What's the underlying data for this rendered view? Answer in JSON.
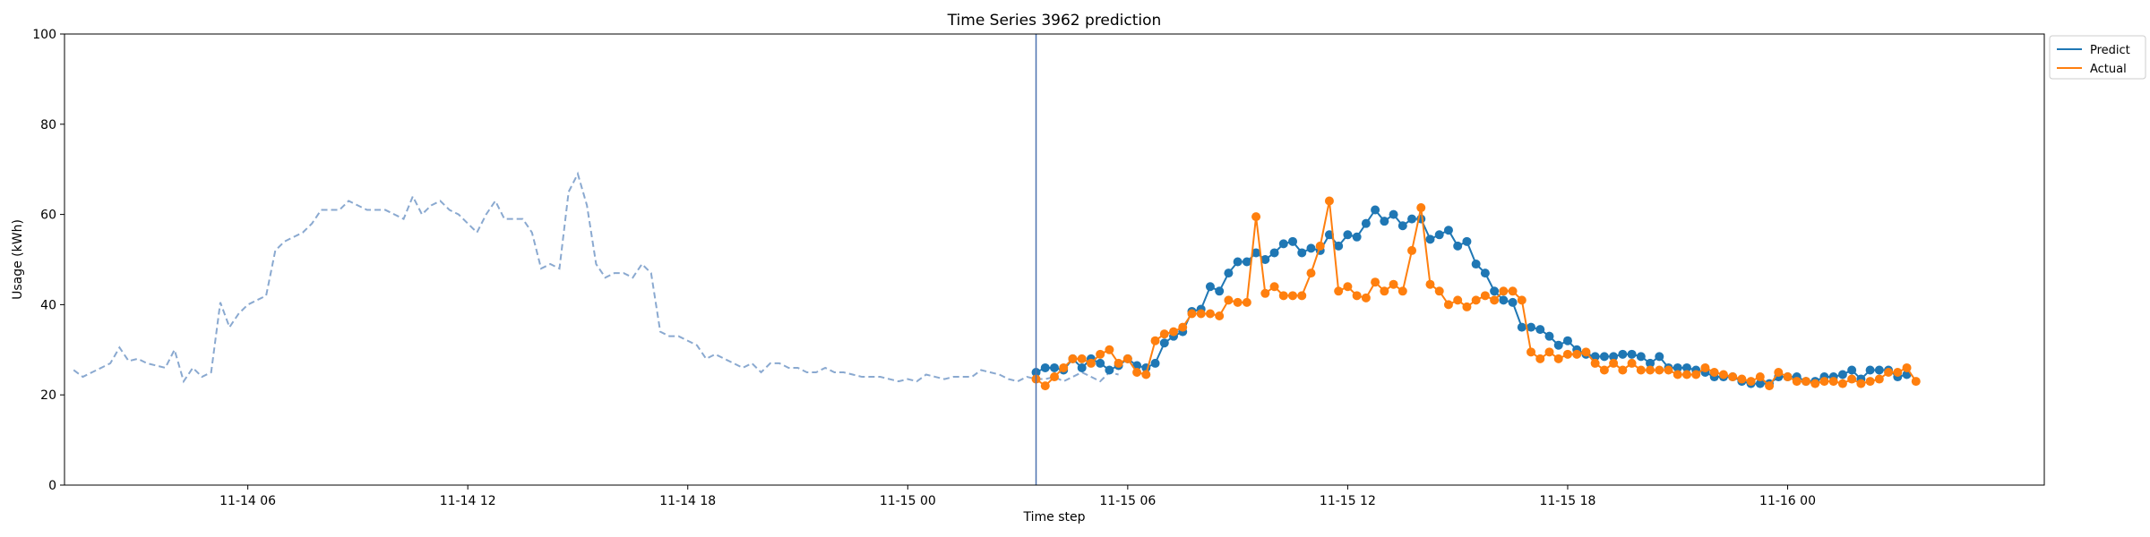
{
  "chart_data": {
    "type": "line",
    "title": "Time Series 3962 prediction",
    "xlabel": "Time step",
    "ylabel": "Usage (kWh)",
    "ylim": [
      0,
      100
    ],
    "yticks": [
      0,
      20,
      40,
      60,
      80,
      100
    ],
    "xlim": [
      "2025-11-14 01:00",
      "2025-11-16 07:00"
    ],
    "xticks": [
      {
        "time": "2025-11-14 06:00",
        "label": "11-14 06"
      },
      {
        "time": "2025-11-14 12:00",
        "label": "11-14 12"
      },
      {
        "time": "2025-11-14 18:00",
        "label": "11-14 18"
      },
      {
        "time": "2025-11-15 00:00",
        "label": "11-15 00"
      },
      {
        "time": "2025-11-15 06:00",
        "label": "11-15 06"
      },
      {
        "time": "2025-11-15 12:00",
        "label": "11-15 12"
      },
      {
        "time": "2025-11-15 18:00",
        "label": "11-15 18"
      },
      {
        "time": "2025-11-16 00:00",
        "label": "11-16 00"
      }
    ],
    "grid": false,
    "legend": "outside top-right",
    "vline": {
      "x": "2025-11-15 03:30",
      "color": "#4c72b0"
    },
    "series": [
      {
        "name": "",
        "style": "dashed",
        "color": "#8aa9d0",
        "start": "2025-11-14 01:15",
        "step_minutes": 15,
        "values": [
          25.5,
          24,
          25,
          26,
          27,
          30.5,
          27.5,
          28,
          27,
          26.5,
          26,
          30,
          23,
          26,
          24,
          25,
          40.5,
          35,
          38,
          40,
          41,
          42,
          52,
          54,
          55,
          56,
          58,
          61,
          61,
          61,
          63,
          62,
          61,
          61,
          61,
          60,
          59,
          64,
          60,
          62,
          63,
          61,
          60,
          58,
          56,
          60,
          63,
          59,
          59,
          59,
          56,
          48,
          49,
          48,
          65,
          69,
          62,
          49,
          46,
          47,
          47,
          46,
          49,
          47,
          34,
          33,
          33,
          32,
          31,
          28,
          29,
          28,
          27,
          26,
          27,
          25,
          27,
          27,
          26,
          26,
          25,
          25,
          26,
          25,
          25,
          24.5,
          24,
          24,
          24,
          23.5,
          23,
          23.5,
          23,
          24.5,
          24,
          23.5,
          24,
          24,
          24,
          25.5,
          25,
          24.5,
          23.5,
          23,
          24,
          23.5,
          23.5,
          24,
          23,
          24,
          25,
          24,
          23,
          25,
          24.5
        ]
      },
      {
        "name": "Predict",
        "style": "solid-markers",
        "color": "#1f77b4",
        "start": "2025-11-15 03:30",
        "step_minutes": 15,
        "values": [
          25,
          26,
          26,
          25.5,
          28,
          26,
          28,
          27,
          25.5,
          26.5,
          28,
          26.5,
          26,
          27,
          31.5,
          33,
          34,
          38.5,
          39,
          44,
          43,
          47,
          49.5,
          49.5,
          51.5,
          50,
          51.5,
          53.5,
          54,
          51.5,
          52.5,
          52,
          55.5,
          53,
          55.5,
          55,
          58,
          61,
          58.5,
          60,
          57.5,
          59,
          59,
          54.5,
          55.5,
          56.5,
          53,
          54,
          49,
          47,
          43,
          41,
          40.5,
          35,
          35,
          34.5,
          33,
          31,
          32,
          30,
          29,
          28.5,
          28.5,
          28.5,
          29,
          29,
          28.5,
          27,
          28.5,
          26,
          26,
          26,
          25.5,
          25,
          24,
          24,
          24,
          23,
          22.5,
          22.5,
          22.5,
          24,
          24,
          24,
          23,
          23,
          24,
          24,
          24.5,
          25.5,
          23.5,
          25.5,
          25.5,
          25.5,
          24,
          24.5
        ]
      },
      {
        "name": "Actual",
        "style": "solid-markers",
        "color": "#ff7f0e",
        "start": "2025-11-15 03:30",
        "step_minutes": 15,
        "values": [
          23.5,
          22,
          24,
          26,
          28,
          28,
          27,
          29,
          30,
          27,
          28,
          25,
          24.5,
          32,
          33.5,
          34,
          35,
          38,
          38,
          38,
          37.5,
          41,
          40.5,
          40.5,
          59.5,
          42.5,
          44,
          42,
          42,
          42,
          47,
          53,
          63,
          43,
          44,
          42,
          41.5,
          45,
          43,
          44.5,
          43,
          52,
          61.5,
          44.5,
          43,
          40,
          41,
          39.5,
          41,
          42,
          41,
          43,
          43,
          41,
          29.5,
          28,
          29.5,
          28,
          29,
          29,
          29.5,
          27,
          25.5,
          27,
          25.5,
          27,
          25.5,
          25.5,
          25.5,
          25.5,
          24.5,
          24.5,
          24.5,
          26,
          25,
          24.5,
          24,
          23.5,
          23,
          24,
          22,
          25,
          24,
          23,
          23,
          22.5,
          23,
          23,
          22.5,
          23.5,
          22.5,
          23,
          23.5,
          25,
          25,
          26,
          23
        ]
      }
    ]
  }
}
